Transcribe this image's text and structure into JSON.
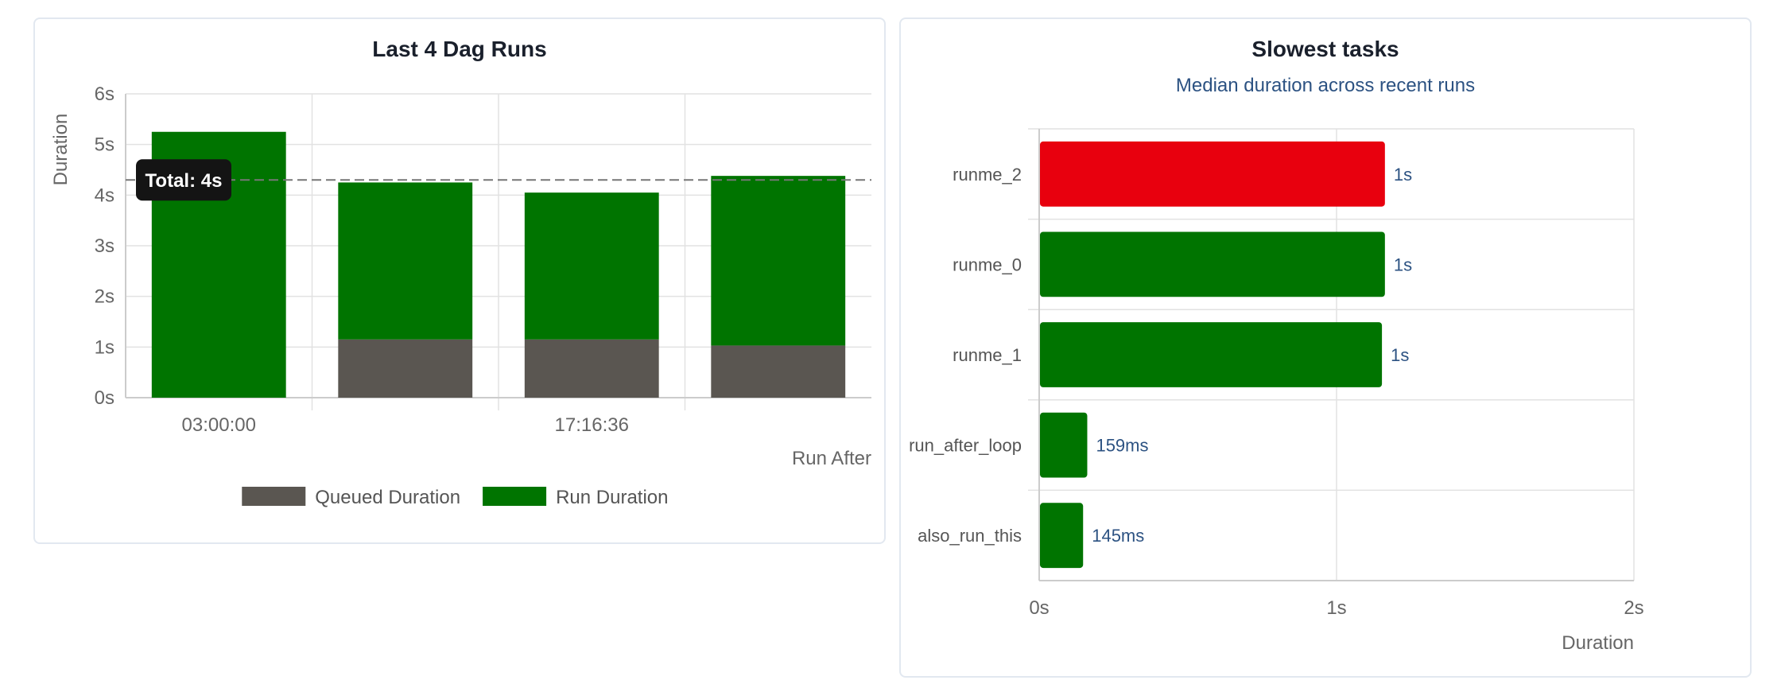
{
  "chart_data": [
    {
      "type": "bar",
      "stacked": true,
      "title": "Last 4 Dag Runs",
      "xlabel": "Run After",
      "ylabel": "Duration",
      "y_unit": "s",
      "ylim": [
        0,
        6
      ],
      "y_ticks": [
        "0s",
        "1s",
        "2s",
        "3s",
        "4s",
        "5s",
        "6s"
      ],
      "x_tick_labels": [
        "03:00:00",
        "",
        "17:16:36",
        ""
      ],
      "series": [
        {
          "name": "Queued Duration",
          "color": "#5a5651",
          "values": [
            0.0,
            1.15,
            1.15,
            1.03
          ]
        },
        {
          "name": "Run Duration",
          "color": "#007400",
          "values": [
            5.25,
            3.1,
            2.9,
            3.35
          ]
        }
      ],
      "reference_line": {
        "value": 4.3,
        "style": "dashed"
      },
      "tooltip": "Total: 4s",
      "legend": "bottom",
      "grid": true
    },
    {
      "type": "bar",
      "orientation": "horizontal",
      "title": "Slowest tasks",
      "subtitle": "Median duration across recent runs",
      "xlabel": "Duration",
      "xlim": [
        0,
        2
      ],
      "x_ticks": [
        "0s",
        "1s",
        "2s"
      ],
      "categories": [
        "runme_2",
        "runme_0",
        "runme_1",
        "run_after_loop",
        "also_run_this"
      ],
      "values": [
        1.16,
        1.16,
        1.15,
        0.159,
        0.145
      ],
      "value_labels": [
        "1s",
        "1s",
        "1s",
        "159ms",
        "145ms"
      ],
      "colors": [
        "#e8000e",
        "#007400",
        "#007400",
        "#007400",
        "#007400"
      ],
      "grid": true
    }
  ]
}
